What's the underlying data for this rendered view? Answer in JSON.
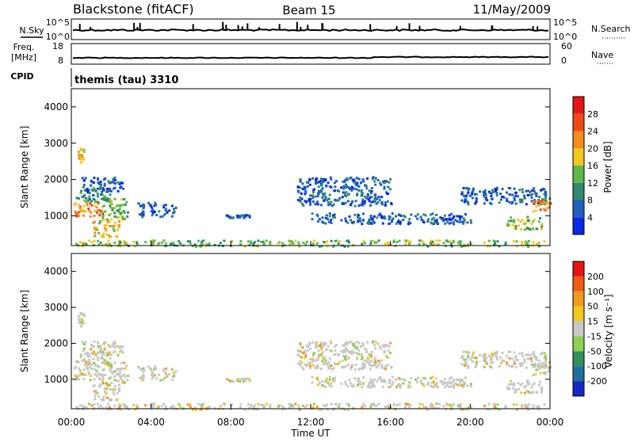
{
  "header": {
    "station": "Blackstone (fitACF)",
    "beam": "Beam 15",
    "date": "11/May/2009"
  },
  "nsky_panel": {
    "left_label": "N.Sky",
    "right_label": "N.Search",
    "tick_top": "10^5",
    "tick_bottom": "10^0"
  },
  "freq_panel": {
    "left_label_1": "Freq.",
    "left_label_2": "[MHz]",
    "right_label": "Nave",
    "left_ticks": [
      "18",
      "8"
    ],
    "right_ticks": [
      "60",
      "0"
    ]
  },
  "cpid_panel": {
    "label": "CPID",
    "text": "themis (tau) 3310"
  },
  "axes": {
    "xlabel": "Time UT",
    "ylabel": "Slant Range [km]",
    "x_ticks": [
      "00:00",
      "04:00",
      "08:00",
      "12:00",
      "16:00",
      "20:00",
      "00:00"
    ],
    "y_ticks": [
      "1000",
      "2000",
      "3000",
      "4000"
    ]
  },
  "power_scale": {
    "label": "Power [dB]",
    "ticks": [
      "4",
      "8",
      "12",
      "16",
      "20",
      "24",
      "28"
    ],
    "colors": [
      "#0a28e6",
      "#1f5fbf",
      "#2f8a70",
      "#5fb94a",
      "#f2c81e",
      "#f28c1e",
      "#f04a14",
      "#e61414"
    ]
  },
  "velocity_scale": {
    "label": "Velocity [m s⁻¹]",
    "ticks": [
      "200",
      "100",
      "50",
      "15",
      "-15",
      "-50",
      "-100",
      "-200"
    ],
    "colors": [
      "#1428c8",
      "#1f6fa0",
      "#30905a",
      "#8ed050",
      "#c8c8c8",
      "#f2c81e",
      "#f29a1e",
      "#f05a14",
      "#e61414"
    ]
  },
  "chart_data": {
    "type": "heatmap",
    "x_range_hours": [
      0,
      24
    ],
    "y_range_km": [
      180,
      4500
    ],
    "power_bands": [
      {
        "t_start": 0.1,
        "t_end": 1.6,
        "r_start": 1000,
        "r_end": 1400,
        "level": 5
      },
      {
        "t_start": 0.2,
        "t_end": 2.0,
        "r_start": 1400,
        "r_end": 1800,
        "level": 2
      },
      {
        "t_start": 0.5,
        "t_end": 2.6,
        "r_start": 1700,
        "r_end": 2100,
        "level": 1
      },
      {
        "t_start": 1.0,
        "t_end": 2.4,
        "r_start": 450,
        "r_end": 900,
        "level": 4
      },
      {
        "t_start": 1.5,
        "t_end": 2.8,
        "r_start": 900,
        "r_end": 1500,
        "level": 3
      },
      {
        "t_start": 3.3,
        "t_end": 5.2,
        "r_start": 1000,
        "r_end": 1400,
        "level": 1
      },
      {
        "t_start": 0.3,
        "t_end": 0.6,
        "r_start": 2500,
        "r_end": 2900,
        "level": 4
      },
      {
        "t_start": 0.2,
        "t_end": 23.9,
        "r_start": 180,
        "r_end": 350,
        "level": 3
      },
      {
        "t_start": 11.3,
        "t_end": 16.0,
        "r_start": 1300,
        "r_end": 2100,
        "level": 1
      },
      {
        "t_start": 12.0,
        "t_end": 20.0,
        "r_start": 800,
        "r_end": 1100,
        "level": 1
      },
      {
        "t_start": 19.5,
        "t_end": 24.0,
        "r_start": 1350,
        "r_end": 1800,
        "level": 1
      },
      {
        "t_start": 21.8,
        "t_end": 23.6,
        "r_start": 650,
        "r_end": 1000,
        "level": 3
      },
      {
        "t_start": 23.0,
        "t_end": 24.0,
        "r_start": 1150,
        "r_end": 1450,
        "level": 5
      },
      {
        "t_start": 7.6,
        "t_end": 9.0,
        "r_start": 950,
        "r_end": 1050,
        "level": 1
      }
    ]
  }
}
